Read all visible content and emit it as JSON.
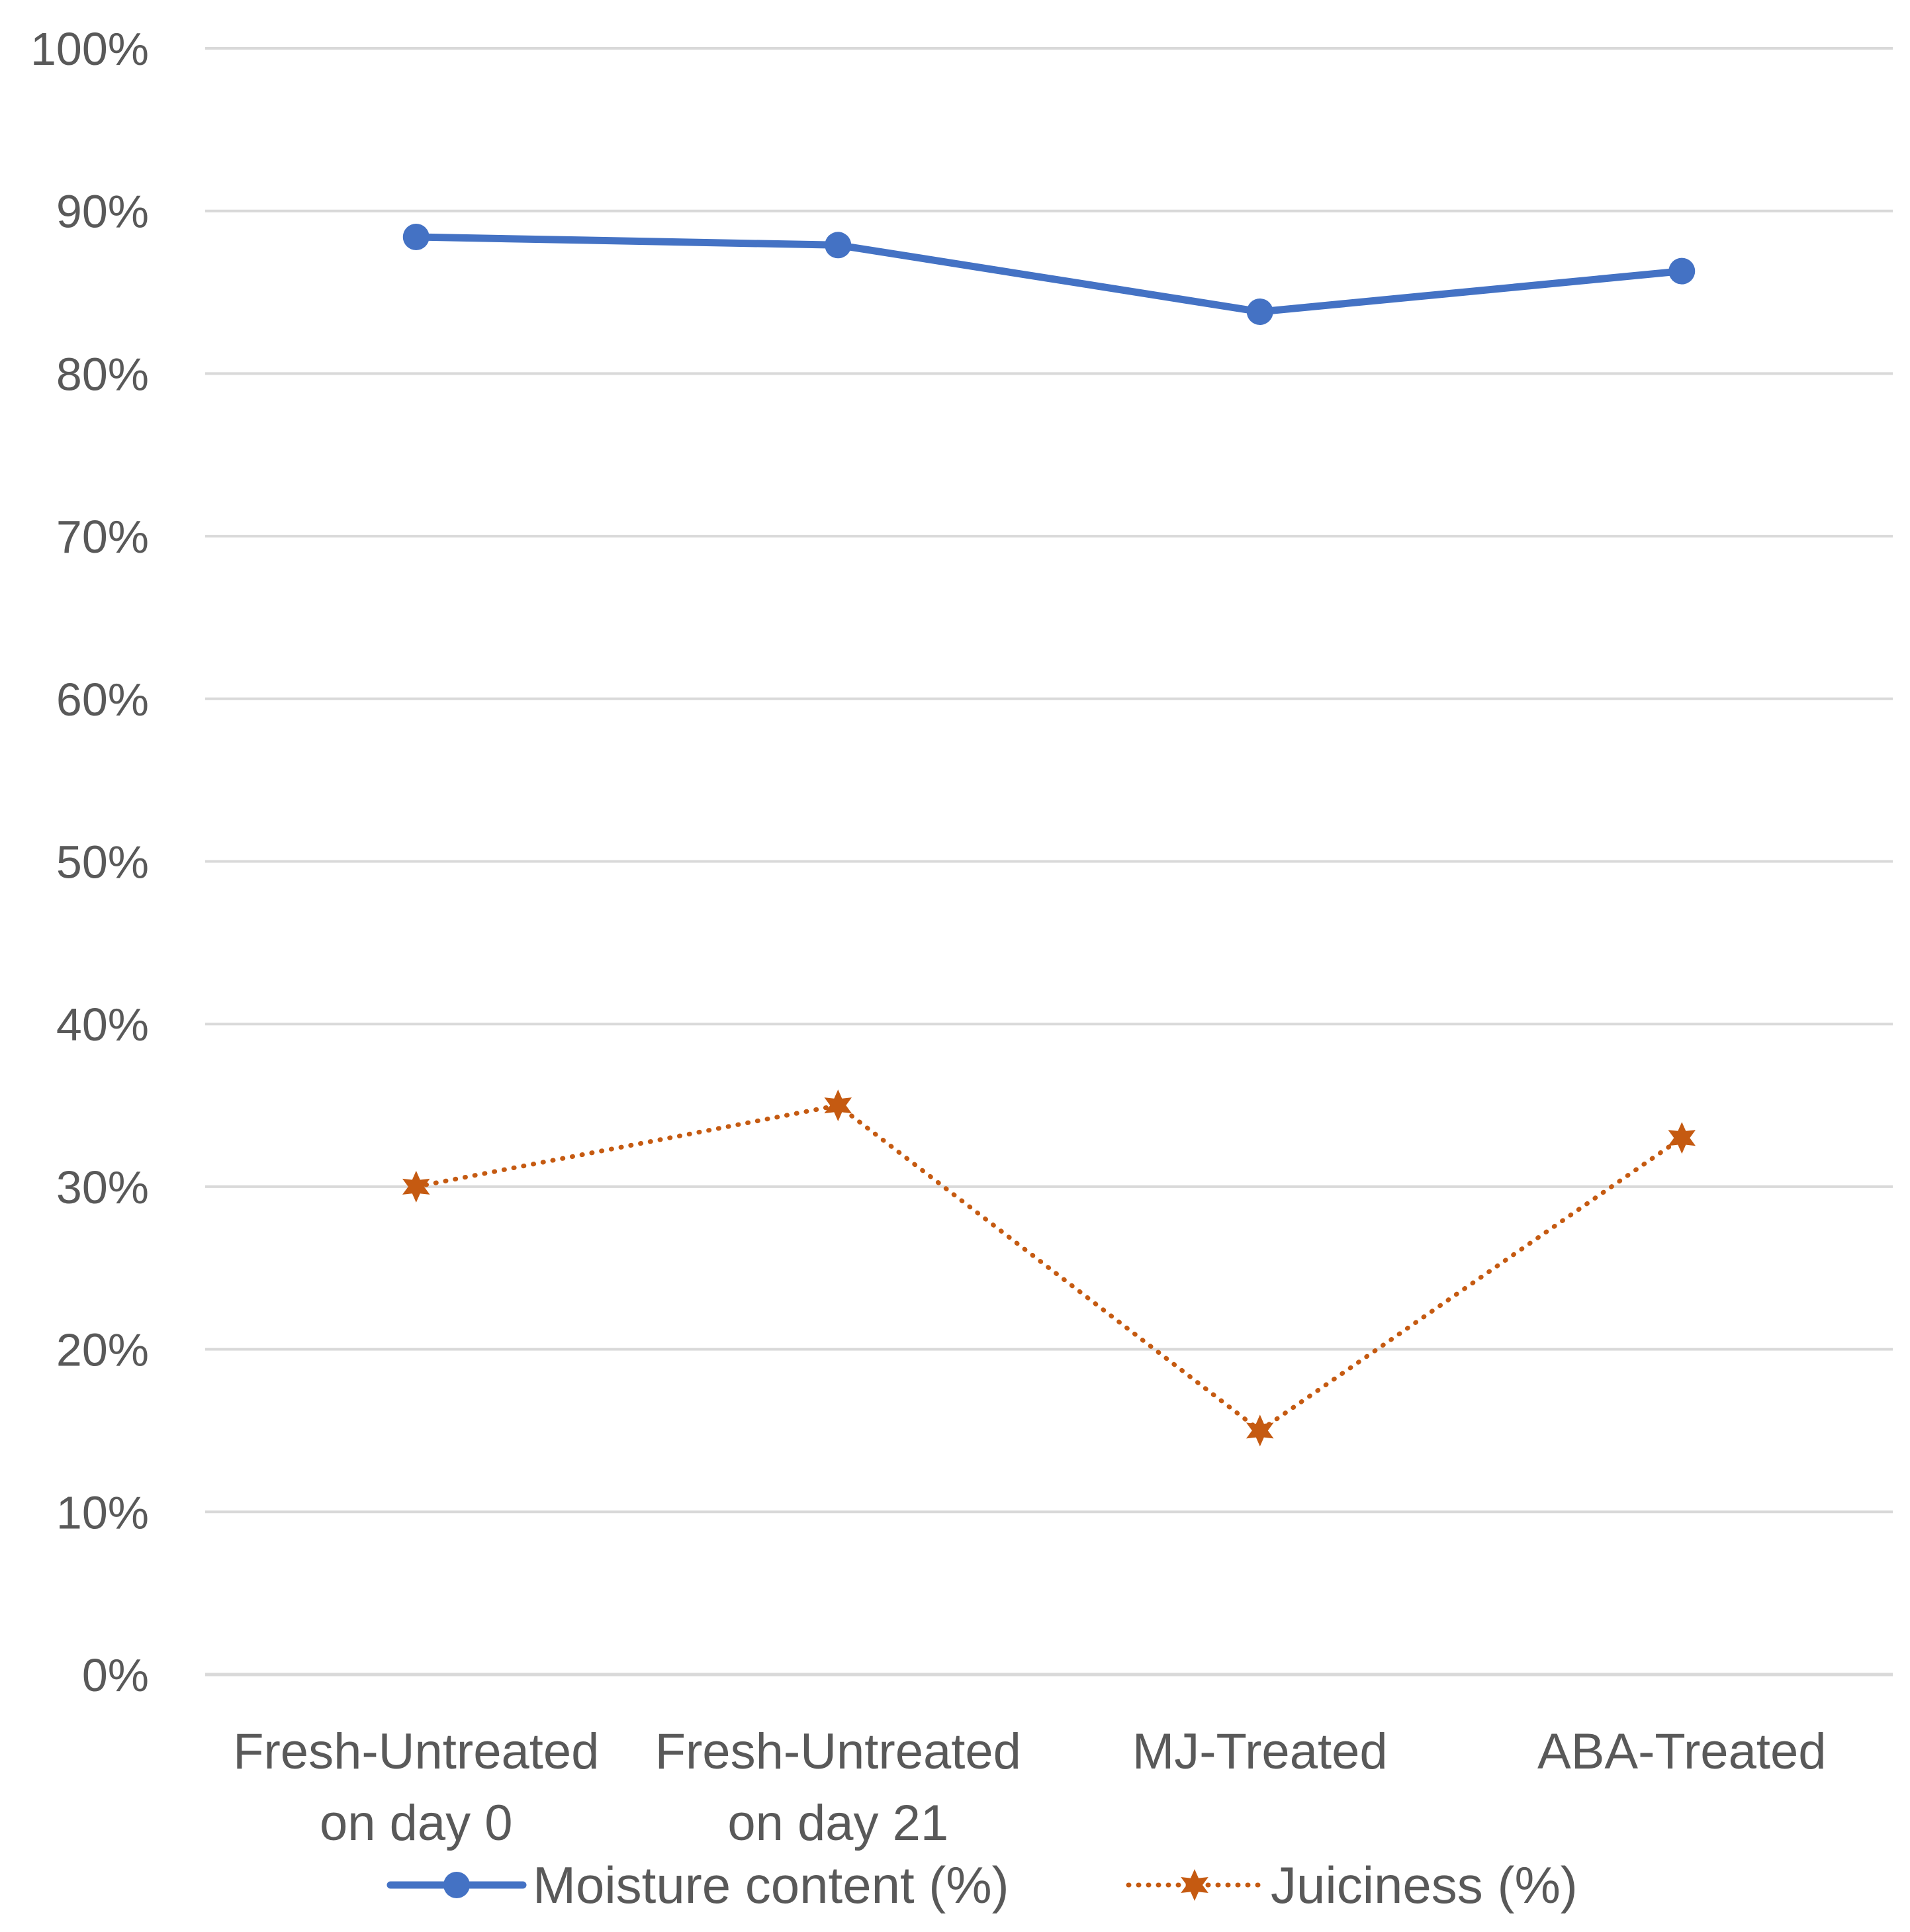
{
  "chart_data": {
    "type": "line",
    "title": "",
    "xlabel": "",
    "ylabel": "",
    "ylim": [
      0,
      100
    ],
    "y_ticks": [
      "0%",
      "10%",
      "20%",
      "30%",
      "40%",
      "50%",
      "60%",
      "70%",
      "80%",
      "90%",
      "100%"
    ],
    "categories": [
      [
        "Fresh-Untreated",
        "on day 0"
      ],
      [
        "Fresh-Untreated",
        "on day 21"
      ],
      [
        "MJ-Treated"
      ],
      [
        "ABA-Treated"
      ]
    ],
    "series": [
      {
        "name": "Moisture content (%)",
        "values": [
          88.4,
          87.9,
          83.8,
          86.3
        ],
        "color": "#4472c4",
        "line_style": "solid",
        "marker": "circle"
      },
      {
        "name": "Juiciness (%)",
        "values": [
          30,
          35,
          15,
          33
        ],
        "color": "#c55a11",
        "line_style": "dotted",
        "marker": "star"
      }
    ],
    "grid": true,
    "legend_position": "bottom"
  }
}
